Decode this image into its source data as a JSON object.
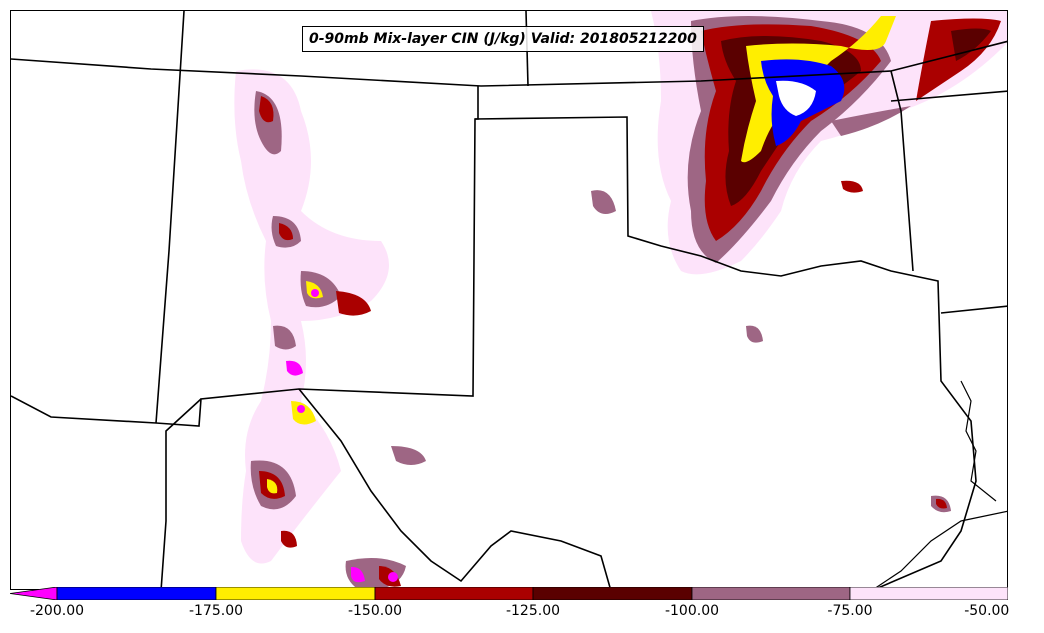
{
  "title": "0-90mb Mix-layer CIN (J/kg) Valid: 201805212200",
  "colorbar": {
    "labels": [
      "-200.00",
      "-175.00",
      "-150.00",
      "-125.00",
      "-100.00",
      "-75.00",
      "-50.00"
    ],
    "colors": [
      "#ff00ff",
      "#0000ff",
      "#ffee00",
      "#aa0000",
      "#5a0000",
      "#9e6684",
      "#fde3fa"
    ],
    "under_color": "#ff00ff"
  }
}
